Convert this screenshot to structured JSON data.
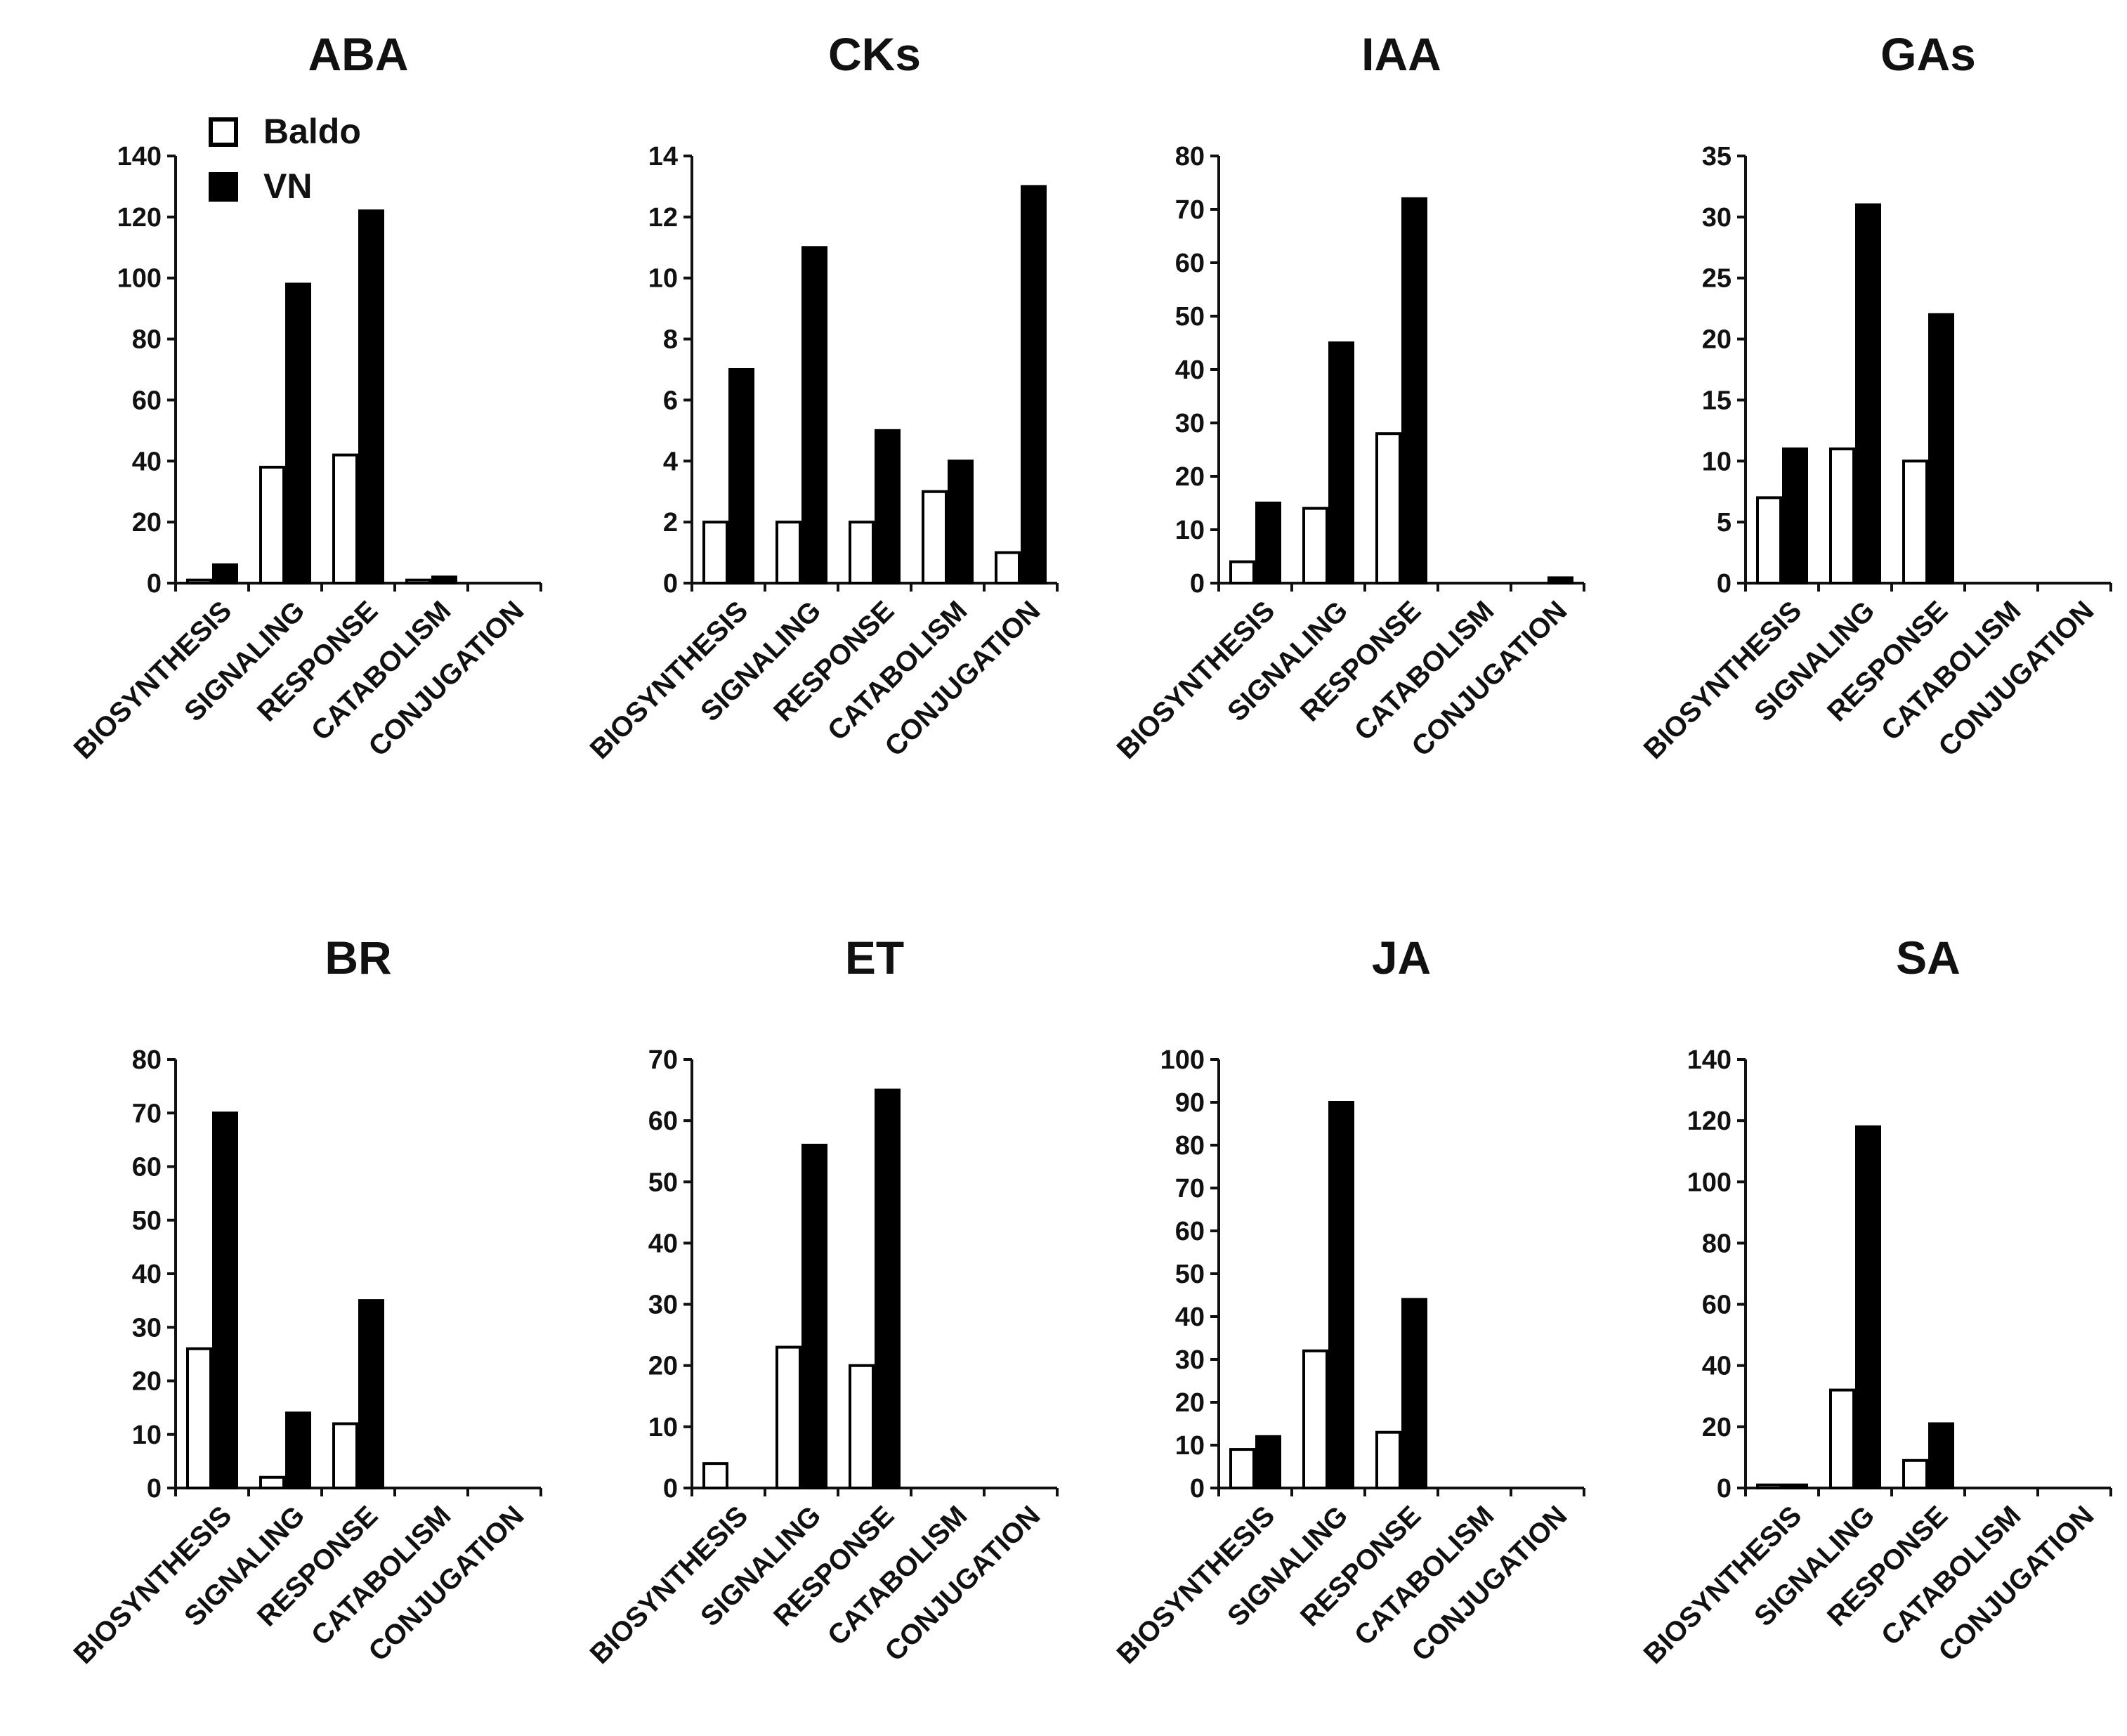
{
  "colors": {
    "baldo_fill": "#ffffff",
    "vn_fill": "#000000",
    "bar_stroke": "#000000"
  },
  "legend": {
    "placement": "top-left of first panel",
    "items": [
      {
        "name": "Baldo",
        "fill": "#ffffff"
      },
      {
        "name": "VN",
        "fill": "#000000"
      }
    ]
  },
  "chart_data": [
    {
      "type": "bar",
      "title": "ABA",
      "categories": [
        "BIOSYNTHESIS",
        "SIGNALING",
        "RESPONSE",
        "CATABOLISM",
        "CONJUGATION"
      ],
      "ylim": [
        0,
        140
      ],
      "yticks": [
        0,
        20,
        40,
        60,
        80,
        100,
        120,
        140
      ],
      "series": [
        {
          "name": "Baldo",
          "values": [
            1,
            38,
            42,
            1,
            0
          ]
        },
        {
          "name": "VN",
          "values": [
            6,
            98,
            122,
            2,
            0
          ]
        }
      ]
    },
    {
      "type": "bar",
      "title": "CKs",
      "categories": [
        "BIOSYNTHESIS",
        "SIGNALING",
        "RESPONSE",
        "CATABOLISM",
        "CONJUGATION"
      ],
      "ylim": [
        0,
        14
      ],
      "yticks": [
        0,
        2,
        4,
        6,
        8,
        10,
        12,
        14
      ],
      "series": [
        {
          "name": "Baldo",
          "values": [
            2,
            2,
            2,
            3,
            1
          ]
        },
        {
          "name": "VN",
          "values": [
            7,
            11,
            5,
            4,
            13
          ]
        }
      ]
    },
    {
      "type": "bar",
      "title": "IAA",
      "categories": [
        "BIOSYNTHESIS",
        "SIGNALING",
        "RESPONSE",
        "CATABOLISM",
        "CONJUGATION"
      ],
      "ylim": [
        0,
        80
      ],
      "yticks": [
        0,
        10,
        20,
        30,
        40,
        50,
        60,
        70,
        80
      ],
      "series": [
        {
          "name": "Baldo",
          "values": [
            4,
            14,
            28,
            0,
            0
          ]
        },
        {
          "name": "VN",
          "values": [
            15,
            45,
            72,
            0,
            1
          ]
        }
      ]
    },
    {
      "type": "bar",
      "title": "GAs",
      "categories": [
        "BIOSYNTHESIS",
        "SIGNALING",
        "RESPONSE",
        "CATABOLISM",
        "CONJUGATION"
      ],
      "ylim": [
        0,
        35
      ],
      "yticks": [
        0,
        5,
        10,
        15,
        20,
        25,
        30,
        35
      ],
      "series": [
        {
          "name": "Baldo",
          "values": [
            7,
            11,
            10,
            0,
            0
          ]
        },
        {
          "name": "VN",
          "values": [
            11,
            31,
            22,
            0,
            0
          ]
        }
      ]
    },
    {
      "type": "bar",
      "title": "BR",
      "categories": [
        "BIOSYNTHESIS",
        "SIGNALING",
        "RESPONSE",
        "CATABOLISM",
        "CONJUGATION"
      ],
      "ylim": [
        0,
        80
      ],
      "yticks": [
        0,
        10,
        20,
        30,
        40,
        50,
        60,
        70,
        80
      ],
      "series": [
        {
          "name": "Baldo",
          "values": [
            26,
            2,
            12,
            0,
            0
          ]
        },
        {
          "name": "VN",
          "values": [
            70,
            14,
            35,
            0,
            0
          ]
        }
      ]
    },
    {
      "type": "bar",
      "title": "ET",
      "categories": [
        "BIOSYNTHESIS",
        "SIGNALING",
        "RESPONSE",
        "CATABOLISM",
        "CONJUGATION"
      ],
      "ylim": [
        0,
        70
      ],
      "yticks": [
        0,
        10,
        20,
        30,
        40,
        50,
        60,
        70
      ],
      "series": [
        {
          "name": "Baldo",
          "values": [
            4,
            23,
            20,
            0,
            0
          ]
        },
        {
          "name": "VN",
          "values": [
            0,
            56,
            65,
            0,
            0
          ]
        }
      ]
    },
    {
      "type": "bar",
      "title": "JA",
      "categories": [
        "BIOSYNTHESIS",
        "SIGNALING",
        "RESPONSE",
        "CATABOLISM",
        "CONJUGATION"
      ],
      "ylim": [
        0,
        100
      ],
      "yticks": [
        0,
        10,
        20,
        30,
        40,
        50,
        60,
        70,
        80,
        90,
        100
      ],
      "series": [
        {
          "name": "Baldo",
          "values": [
            9,
            32,
            13,
            0,
            0
          ]
        },
        {
          "name": "VN",
          "values": [
            12,
            90,
            44,
            0,
            0
          ]
        }
      ]
    },
    {
      "type": "bar",
      "title": "SA",
      "categories": [
        "BIOSYNTHESIS",
        "SIGNALING",
        "RESPONSE",
        "CATABOLISM",
        "CONJUGATION"
      ],
      "ylim": [
        0,
        140
      ],
      "yticks": [
        0,
        20,
        40,
        60,
        80,
        100,
        120,
        140
      ],
      "series": [
        {
          "name": "Baldo",
          "values": [
            1,
            32,
            9,
            0,
            0
          ]
        },
        {
          "name": "VN",
          "values": [
            1,
            118,
            21,
            0,
            0
          ]
        }
      ]
    }
  ]
}
